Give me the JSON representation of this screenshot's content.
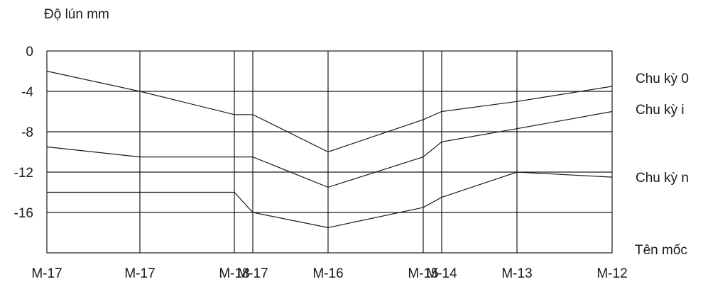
{
  "chart_data": {
    "type": "line",
    "ylabel": "Độ lún mm",
    "xlabel": "Tên mốc",
    "ylim": [
      -20,
      0
    ],
    "yticks": [
      0,
      -4,
      -8,
      -12,
      -16
    ],
    "categories": [
      "M-17",
      "M-17",
      "M-18",
      "M-17",
      "M-16",
      "M-15",
      "M-14",
      "M-13",
      "M-12"
    ],
    "series": [
      {
        "name": "Chu kỳ 0",
        "values": [
          -2,
          -4,
          -6.3,
          -6.3,
          -10,
          -6.8,
          -6,
          -5,
          -3.5
        ]
      },
      {
        "name": "Chu kỳ i",
        "values": [
          -9.5,
          -10.5,
          -10.5,
          -10.5,
          -13.5,
          -10.5,
          -9,
          -7.7,
          -6
        ]
      },
      {
        "name": "Chu kỳ n",
        "values": [
          -14,
          -14,
          -14,
          -16,
          -17.5,
          -15.5,
          -14.5,
          -12,
          -12.5
        ]
      }
    ],
    "grid": true
  }
}
